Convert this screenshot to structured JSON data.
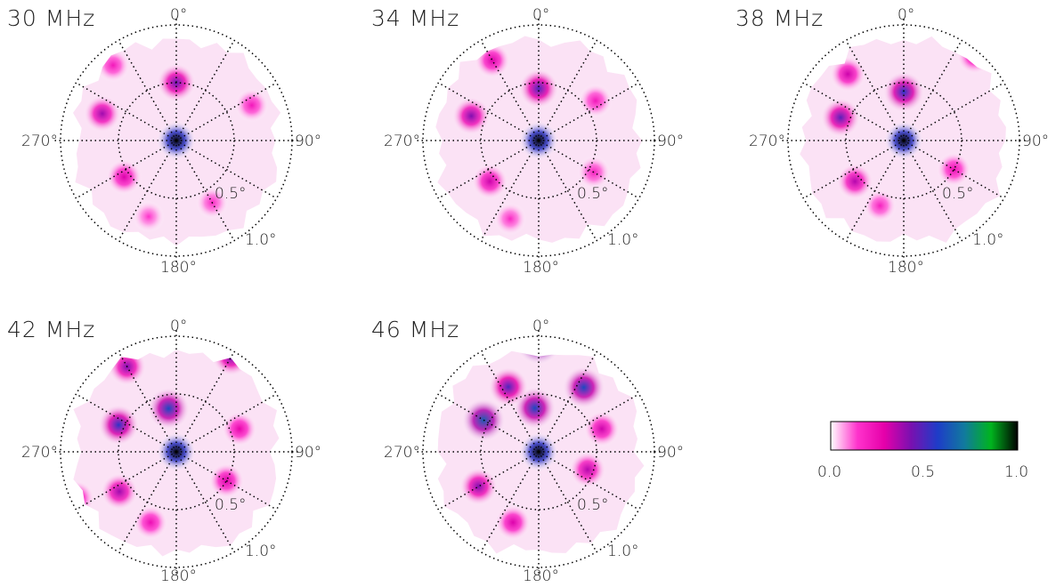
{
  "chart_data": {
    "type": "heatmap",
    "colormap": {
      "stops": [
        "#ffffff",
        "#ff33cc",
        "#e600aa",
        "#7a10b0",
        "#1e3cc8",
        "#117a9e",
        "#00b41e",
        "#000000"
      ],
      "range": [
        0.0,
        1.0
      ],
      "tick_labels": [
        "0.0",
        "0.5",
        "1.0"
      ]
    },
    "panels": [
      {
        "label": "30 MHz",
        "azimuth_labels": [
          "0°",
          "90°",
          "180°",
          "270°"
        ],
        "radius_labels": [
          "0.5°",
          "1.0°"
        ],
        "radial_rings_deg": [
          0.5,
          1.0
        ],
        "peaks": [
          {
            "az": 0,
            "r": 0.0,
            "value": 1.0
          },
          {
            "az": 0,
            "r": 0.5,
            "value": 0.45
          },
          {
            "az": 290,
            "r": 0.68,
            "value": 0.38
          },
          {
            "az": 235,
            "r": 0.55,
            "value": 0.3
          },
          {
            "az": 65,
            "r": 0.72,
            "value": 0.22
          },
          {
            "az": 320,
            "r": 0.85,
            "value": 0.22
          },
          {
            "az": 150,
            "r": 0.62,
            "value": 0.18
          },
          {
            "az": 200,
            "r": 0.7,
            "value": 0.15
          }
        ]
      },
      {
        "label": "34 MHz",
        "azimuth_labels": [
          "0°",
          "90°",
          "180°",
          "270°"
        ],
        "radius_labels": [
          "0.5°",
          "1.0°"
        ],
        "radial_rings_deg": [
          0.5,
          1.0
        ],
        "peaks": [
          {
            "az": 0,
            "r": 0.0,
            "value": 1.0
          },
          {
            "az": 0,
            "r": 0.45,
            "value": 0.5
          },
          {
            "az": 290,
            "r": 0.62,
            "value": 0.42
          },
          {
            "az": 230,
            "r": 0.55,
            "value": 0.32
          },
          {
            "az": 330,
            "r": 0.8,
            "value": 0.3
          },
          {
            "az": 55,
            "r": 0.6,
            "value": 0.22
          },
          {
            "az": 120,
            "r": 0.55,
            "value": 0.2
          },
          {
            "az": 200,
            "r": 0.72,
            "value": 0.18
          }
        ]
      },
      {
        "label": "38 MHz",
        "azimuth_labels": [
          "0°",
          "90°",
          "180°",
          "270°"
        ],
        "radius_labels": [
          "0.5°",
          "1.0°"
        ],
        "radial_rings_deg": [
          0.5,
          1.0
        ],
        "peaks": [
          {
            "az": 0,
            "r": 0.0,
            "value": 1.0
          },
          {
            "az": 0,
            "r": 0.42,
            "value": 0.55
          },
          {
            "az": 290,
            "r": 0.58,
            "value": 0.48
          },
          {
            "az": 230,
            "r": 0.55,
            "value": 0.35
          },
          {
            "az": 320,
            "r": 0.75,
            "value": 0.32
          },
          {
            "az": 40,
            "r": 0.95,
            "value": 0.28
          },
          {
            "az": 120,
            "r": 0.5,
            "value": 0.25
          },
          {
            "az": 200,
            "r": 0.6,
            "value": 0.2
          }
        ]
      },
      {
        "label": "42 MHz",
        "azimuth_labels": [
          "0°",
          "90°",
          "180°",
          "270°"
        ],
        "radius_labels": [
          "0.5°",
          "1.0°"
        ],
        "radial_rings_deg": [
          0.5,
          1.0
        ],
        "peaks": [
          {
            "az": 0,
            "r": 0.0,
            "value": 1.0
          },
          {
            "az": 350,
            "r": 0.38,
            "value": 0.6
          },
          {
            "az": 295,
            "r": 0.55,
            "value": 0.55
          },
          {
            "az": 30,
            "r": 0.95,
            "value": 0.45
          },
          {
            "az": 330,
            "r": 0.85,
            "value": 0.42
          },
          {
            "az": 235,
            "r": 0.6,
            "value": 0.38
          },
          {
            "az": 120,
            "r": 0.5,
            "value": 0.3
          },
          {
            "az": 70,
            "r": 0.58,
            "value": 0.28
          },
          {
            "az": 200,
            "r": 0.65,
            "value": 0.25
          },
          {
            "az": 245,
            "r": 0.95,
            "value": 0.3
          }
        ]
      },
      {
        "label": "46 MHz",
        "azimuth_labels": [
          "0°",
          "90°",
          "180°",
          "270°"
        ],
        "radius_labels": [
          "0.5°",
          "1.0°"
        ],
        "radial_rings_deg": [
          0.5,
          1.0
        ],
        "peaks": [
          {
            "az": 0,
            "r": 0.0,
            "value": 1.0
          },
          {
            "az": 355,
            "r": 0.38,
            "value": 0.6
          },
          {
            "az": 0,
            "r": 0.95,
            "value": 0.72
          },
          {
            "az": 300,
            "r": 0.55,
            "value": 0.65
          },
          {
            "az": 35,
            "r": 0.68,
            "value": 0.6
          },
          {
            "az": 335,
            "r": 0.62,
            "value": 0.5
          },
          {
            "az": 240,
            "r": 0.6,
            "value": 0.42
          },
          {
            "az": 110,
            "r": 0.45,
            "value": 0.35
          },
          {
            "az": 200,
            "r": 0.65,
            "value": 0.3
          },
          {
            "az": 70,
            "r": 0.58,
            "value": 0.32
          }
        ]
      }
    ]
  }
}
